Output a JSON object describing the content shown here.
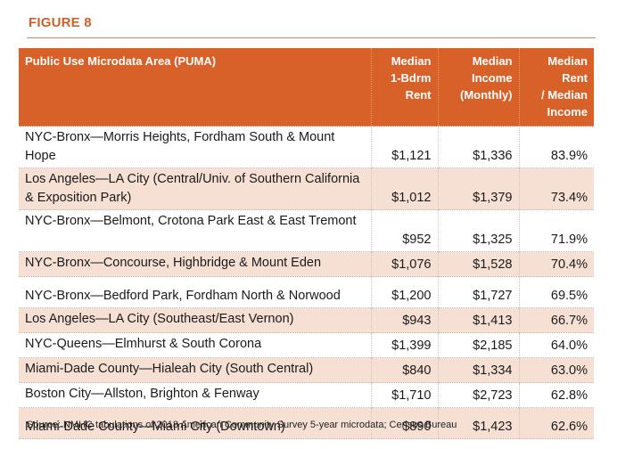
{
  "figure": {
    "label": "FIGURE 8",
    "accent_color": "#d8612a",
    "row_alt_color": "#f6e0d4"
  },
  "table": {
    "headers": [
      "Public Use Microdata Area (PUMA)",
      "Median 1-Bdrm Rent",
      "Median Income (Monthly)",
      "Median Rent / Median Income"
    ],
    "header_lines": [
      [
        "Public Use Microdata Area (PUMA)"
      ],
      [
        "Median",
        "1-Bdrm",
        "Rent"
      ],
      [
        "Median",
        "Income",
        "(Monthly)"
      ],
      [
        "Median Rent",
        "/ Median",
        "Income"
      ]
    ],
    "rows": [
      {
        "puma": "NYC-Bronx—Morris Heights, Fordham South & Mount Hope",
        "rent": "$1,121",
        "income": "$1,336",
        "ratio": "83.9%"
      },
      {
        "puma": "Los Angeles—LA City (Central/Univ. of Southern California & Exposition Park)",
        "rent": "$1,012",
        "income": "$1,379",
        "ratio": "73.4%"
      },
      {
        "puma": "NYC-Bronx—Belmont, Crotona Park East & East Tremont",
        "rent": "$952",
        "income": "$1,325",
        "ratio": "71.9%"
      },
      {
        "puma": "NYC-Bronx—Concourse, Highbridge & Mount Eden",
        "rent": "$1,076",
        "income": "$1,528",
        "ratio": "70.4%"
      },
      {
        "puma": "NYC-Bronx—Bedford Park, Fordham North & Norwood",
        "rent": "$1,200",
        "income": "$1,727",
        "ratio": "69.5%"
      },
      {
        "puma": "Los Angeles—LA City (Southeast/East Vernon)",
        "rent": "$943",
        "income": "$1,413",
        "ratio": "66.7%"
      },
      {
        "puma": "NYC-Queens—Elmhurst & South Corona",
        "rent": "$1,399",
        "income": "$2,185",
        "ratio": "64.0%"
      },
      {
        "puma": "Miami-Dade County—Hialeah City (South Central)",
        "rent": "$840",
        "income": "$1,334",
        "ratio": "63.0%"
      },
      {
        "puma": "Boston City—Allston, Brighton & Fenway",
        "rent": "$1,710",
        "income": "$2,723",
        "ratio": "62.8%"
      },
      {
        "puma": "Miami-Dade County—Miami City (Downtown)",
        "rent": "$890",
        "income": "$1,423",
        "ratio": "62.6%"
      }
    ]
  },
  "source": "Source: NMHC tabulations of 2018 American Community Survey 5-year microdata; Census Bureau"
}
